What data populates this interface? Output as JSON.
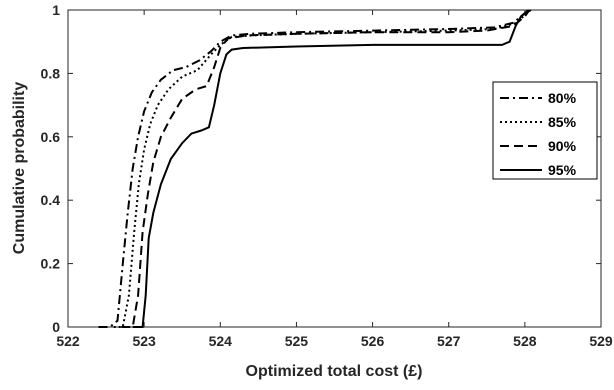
{
  "chart_data": {
    "type": "line",
    "title": "",
    "xlabel": "Optimized total cost  (£)",
    "ylabel": "Cumulative probability",
    "xlim": [
      522,
      529
    ],
    "ylim": [
      0,
      1
    ],
    "xticks": [
      "522",
      "523",
      "524",
      "525",
      "526",
      "527",
      "528",
      "529"
    ],
    "yticks": [
      "0",
      "0.2",
      "0.4",
      "0.6",
      "0.8",
      "1"
    ],
    "grid": false,
    "legend_position": "right",
    "series": [
      {
        "name": "80%",
        "dash": "dashdot",
        "color": "#000000",
        "x": [
          522.4,
          522.55,
          522.65,
          522.72,
          522.78,
          522.85,
          522.92,
          523.0,
          523.1,
          523.22,
          523.38,
          523.55,
          523.72,
          523.88,
          524.0,
          524.15,
          524.4,
          525.0,
          526.0,
          527.0,
          527.6,
          527.85,
          528.0,
          528.05
        ],
        "y": [
          0.0,
          0.0,
          0.02,
          0.2,
          0.35,
          0.5,
          0.6,
          0.68,
          0.74,
          0.78,
          0.81,
          0.82,
          0.84,
          0.87,
          0.9,
          0.92,
          0.925,
          0.93,
          0.935,
          0.94,
          0.945,
          0.96,
          0.99,
          1.0
        ]
      },
      {
        "name": "85%",
        "dash": "dotted",
        "color": "#000000",
        "x": [
          522.6,
          522.72,
          522.8,
          522.87,
          522.93,
          523.0,
          523.08,
          523.18,
          523.32,
          523.5,
          523.7,
          523.88,
          524.0,
          524.15,
          524.4,
          525.0,
          526.0,
          527.0,
          527.6,
          527.9,
          528.02,
          528.08
        ],
        "y": [
          0.0,
          0.0,
          0.1,
          0.3,
          0.45,
          0.56,
          0.64,
          0.7,
          0.75,
          0.79,
          0.81,
          0.86,
          0.89,
          0.915,
          0.92,
          0.925,
          0.93,
          0.935,
          0.94,
          0.96,
          0.99,
          1.0
        ]
      },
      {
        "name": "90%",
        "dash": "dashed",
        "color": "#000000",
        "x": [
          522.7,
          522.85,
          522.92,
          522.98,
          523.05,
          523.12,
          523.22,
          523.35,
          523.5,
          523.68,
          523.82,
          523.92,
          524.0,
          524.1,
          524.35,
          525.0,
          526.0,
          527.0,
          527.5,
          527.85,
          528.0,
          528.06
        ],
        "y": [
          0.0,
          0.0,
          0.1,
          0.3,
          0.42,
          0.52,
          0.6,
          0.66,
          0.72,
          0.75,
          0.76,
          0.82,
          0.88,
          0.91,
          0.92,
          0.925,
          0.93,
          0.93,
          0.935,
          0.95,
          0.98,
          1.0
        ]
      },
      {
        "name": "95%",
        "dash": "solid",
        "color": "#000000",
        "x": [
          522.85,
          522.98,
          523.02,
          523.06,
          523.12,
          523.22,
          523.35,
          523.5,
          523.62,
          523.75,
          523.85,
          523.92,
          524.0,
          524.08,
          524.15,
          524.3,
          525.0,
          526.0,
          527.0,
          527.7,
          527.8,
          527.88,
          527.95,
          528.05
        ],
        "y": [
          0.0,
          0.0,
          0.1,
          0.28,
          0.36,
          0.45,
          0.53,
          0.58,
          0.61,
          0.62,
          0.63,
          0.7,
          0.8,
          0.86,
          0.875,
          0.88,
          0.885,
          0.89,
          0.89,
          0.89,
          0.9,
          0.95,
          0.98,
          1.0
        ]
      }
    ]
  }
}
